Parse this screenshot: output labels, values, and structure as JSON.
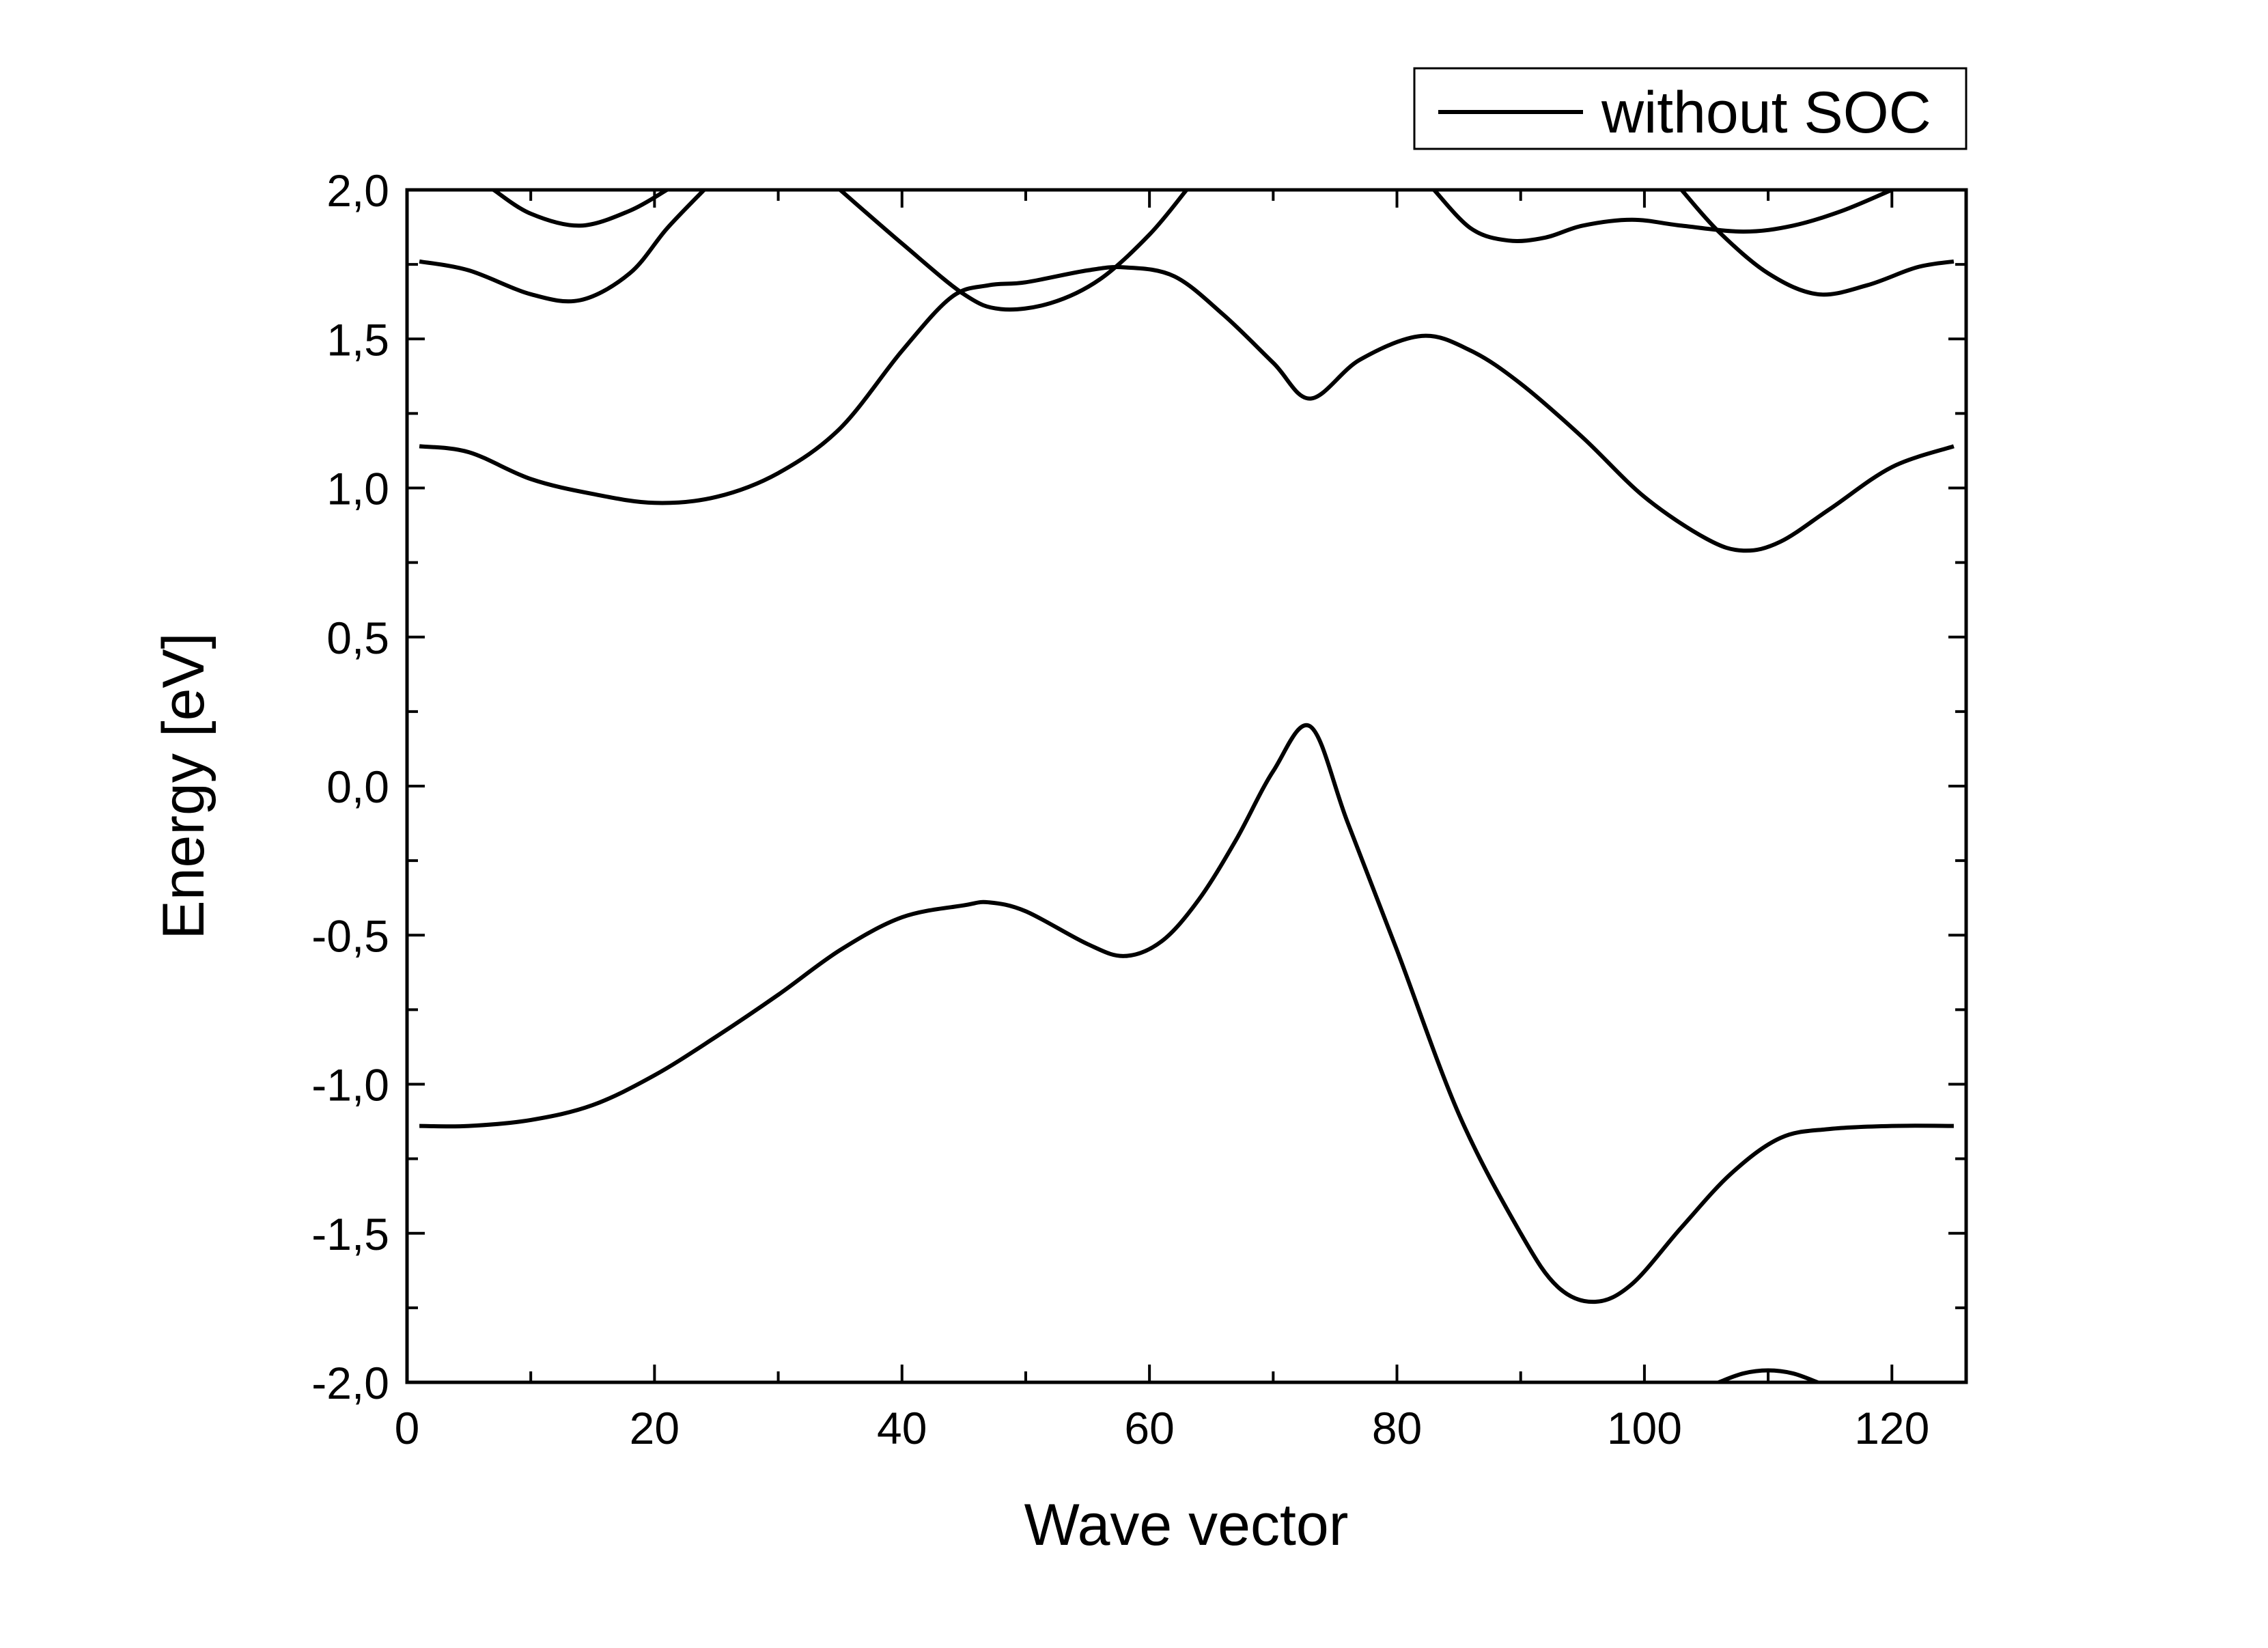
{
  "chart_data": {
    "type": "line",
    "title": "",
    "xlabel": "Wave vector",
    "ylabel": "Energy [eV]",
    "xlim": [
      0,
      126
    ],
    "ylim": [
      -2.0,
      2.0
    ],
    "x_ticks": [
      0,
      20,
      40,
      60,
      80,
      100,
      120
    ],
    "x_tick_labels": [
      "0",
      "20",
      "40",
      "60",
      "80",
      "100",
      "120"
    ],
    "y_ticks": [
      2.0,
      1.5,
      1.0,
      0.5,
      0.0,
      -0.5,
      -1.0,
      -1.5,
      -2.0
    ],
    "y_tick_labels": [
      "2,0",
      "1,5",
      "1,0",
      "0,5",
      "0,0",
      "-0,5",
      "-1,0",
      "-1,5",
      "-2,0"
    ],
    "grid": false,
    "legend": {
      "position": "top-right-outside",
      "entries": [
        "without SOC"
      ]
    },
    "line_color": "#000000",
    "series": [
      {
        "name": "without SOC",
        "bands": [
          [
            [
              1,
              -1.14
            ],
            [
              5,
              -1.14
            ],
            [
              10,
              -1.12
            ],
            [
              15,
              -1.07
            ],
            [
              20,
              -0.97
            ],
            [
              25,
              -0.84
            ],
            [
              30,
              -0.7
            ],
            [
              35,
              -0.55
            ],
            [
              40,
              -0.44
            ],
            [
              45,
              -0.4
            ],
            [
              47,
              -0.39
            ],
            [
              50,
              -0.42
            ],
            [
              55,
              -0.53
            ],
            [
              58,
              -0.57
            ],
            [
              61,
              -0.52
            ],
            [
              64,
              -0.38
            ],
            [
              67,
              -0.18
            ],
            [
              70,
              0.05
            ],
            [
              73,
              0.2
            ],
            [
              76,
              -0.12
            ],
            [
              80,
              -0.55
            ],
            [
              85,
              -1.1
            ],
            [
              90,
              -1.5
            ],
            [
              93,
              -1.68
            ],
            [
              96,
              -1.73
            ],
            [
              99,
              -1.67
            ],
            [
              103,
              -1.48
            ],
            [
              107,
              -1.3
            ],
            [
              111,
              -1.18
            ],
            [
              115,
              -1.15
            ],
            [
              120,
              -1.14
            ],
            [
              125,
              -1.14
            ]
          ],
          [
            [
              1,
              1.14
            ],
            [
              5,
              1.12
            ],
            [
              10,
              1.03
            ],
            [
              15,
              0.98
            ],
            [
              20,
              0.95
            ],
            [
              25,
              0.97
            ],
            [
              30,
              1.05
            ],
            [
              35,
              1.2
            ],
            [
              40,
              1.46
            ],
            [
              44,
              1.64
            ],
            [
              47,
              1.68
            ],
            [
              50,
              1.69
            ],
            [
              55,
              1.73
            ],
            [
              58,
              1.74
            ],
            [
              62,
              1.71
            ],
            [
              66,
              1.58
            ],
            [
              70,
              1.42
            ],
            [
              73,
              1.3
            ],
            [
              77,
              1.43
            ],
            [
              82,
              1.51
            ],
            [
              86,
              1.46
            ],
            [
              90,
              1.35
            ],
            [
              95,
              1.17
            ],
            [
              100,
              0.97
            ],
            [
              105,
              0.83
            ],
            [
              108,
              0.79
            ],
            [
              111,
              0.82
            ],
            [
              115,
              0.93
            ],
            [
              120,
              1.07
            ],
            [
              125,
              1.14
            ]
          ],
          [
            [
              1,
              1.76
            ],
            [
              5,
              1.73
            ],
            [
              10,
              1.65
            ],
            [
              14,
              1.63
            ],
            [
              18,
              1.72
            ],
            [
              21,
              1.87
            ],
            [
              24,
              2.0
            ]
          ],
          [
            [
              35,
              2.0
            ],
            [
              40,
              1.82
            ],
            [
              45,
              1.65
            ],
            [
              48,
              1.6
            ],
            [
              52,
              1.62
            ],
            [
              56,
              1.7
            ],
            [
              60,
              1.85
            ],
            [
              63,
              2.0
            ]
          ],
          [
            [
              103,
              2.0
            ],
            [
              106,
              1.86
            ],
            [
              110,
              1.72
            ],
            [
              114,
              1.65
            ],
            [
              118,
              1.68
            ],
            [
              122,
              1.74
            ],
            [
              125,
              1.76
            ]
          ],
          [
            [
              7,
              2.0
            ],
            [
              10,
              1.92
            ],
            [
              14,
              1.88
            ],
            [
              18,
              1.93
            ],
            [
              21,
              2.0
            ]
          ],
          [
            [
              83,
              2.0
            ],
            [
              86,
              1.87
            ],
            [
              89,
              1.83
            ],
            [
              92,
              1.84
            ],
            [
              95,
              1.88
            ],
            [
              99,
              1.9
            ],
            [
              103,
              1.88
            ],
            [
              108,
              1.86
            ],
            [
              112,
              1.88
            ],
            [
              116,
              1.93
            ],
            [
              120,
              2.0
            ]
          ],
          [
            [
              106,
              -2.0
            ],
            [
              108,
              -1.97
            ],
            [
              110,
              -1.96
            ],
            [
              112,
              -1.97
            ],
            [
              114,
              -2.0
            ]
          ]
        ]
      }
    ]
  }
}
